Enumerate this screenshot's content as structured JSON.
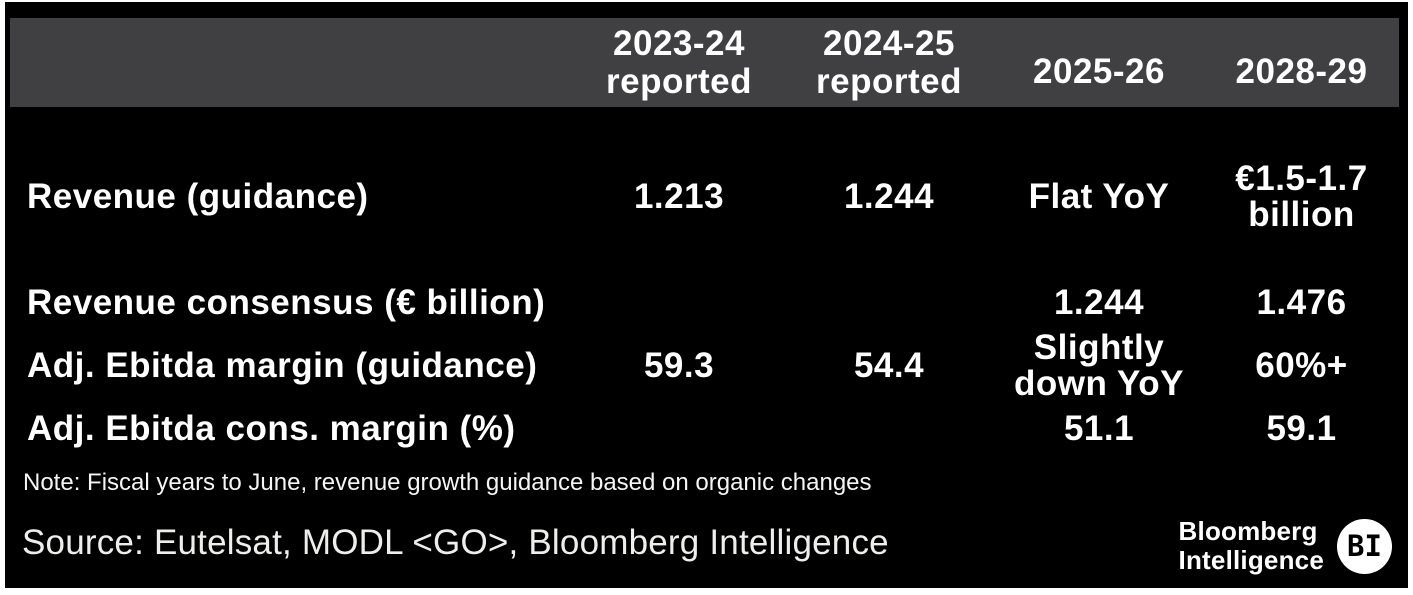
{
  "chart_data": {
    "type": "table",
    "columns": [
      "",
      "2023-24 reported",
      "2024-25 reported",
      "2025-26",
      "2028-29"
    ],
    "rows": [
      [
        "Revenue (guidance)",
        "1.213",
        "1.244",
        "Flat YoY",
        "€1.5-1.7 billion"
      ],
      [
        "Revenue consensus (€ billion)",
        "",
        "",
        "1.244",
        "1.476"
      ],
      [
        "Adj. Ebitda margin (guidance)",
        "59.3",
        "54.4",
        "Slightly down YoY",
        "60%+"
      ],
      [
        "Adj. Ebitda cons. margin (%)",
        "",
        "",
        "51.1",
        "59.1"
      ]
    ],
    "note": "Note: Fiscal years to June, revenue growth guidance based on organic changes",
    "source": "Source: Eutelsat, MODL <GO>, Bloomberg Intelligence",
    "legend_position": "none",
    "grid": false
  },
  "table": {
    "header": {
      "col1": "2023-24\nreported",
      "col2": "2024-25\nreported",
      "col3": "2025-26",
      "col4": "2028-29"
    },
    "rows": [
      {
        "label": "Revenue (guidance)",
        "v1": "1.213",
        "v2": "1.244",
        "v3": "Flat YoY",
        "v4": "€1.5-1.7\nbillion"
      },
      {
        "label": "Revenue consensus (€ billion)",
        "v1": "",
        "v2": "",
        "v3": "1.244",
        "v4": "1.476"
      },
      {
        "label": "Adj. Ebitda margin (guidance)",
        "v1": "59.3",
        "v2": "54.4",
        "v3": "Slightly\ndown YoY",
        "v4": "60%+"
      },
      {
        "label": "Adj. Ebitda cons. margin (%)",
        "v1": "",
        "v2": "",
        "v3": "51.1",
        "v4": "59.1"
      }
    ]
  },
  "note": "Note: Fiscal years to June, revenue growth guidance based on organic changes",
  "source": "Source: Eutelsat, MODL <GO>, Bloomberg Intelligence",
  "logo": {
    "line1": "Bloomberg",
    "line2": "Intelligence",
    "badge": "BI"
  },
  "colors": {
    "page_background": "#ffffff",
    "card_background": "#000000",
    "header_background": "#404042",
    "table_text": "#ffffff",
    "note_text": "#f5f5f5",
    "source_text": "#eeeeec",
    "badge_background": "#ffffff",
    "badge_text": "#000000"
  }
}
